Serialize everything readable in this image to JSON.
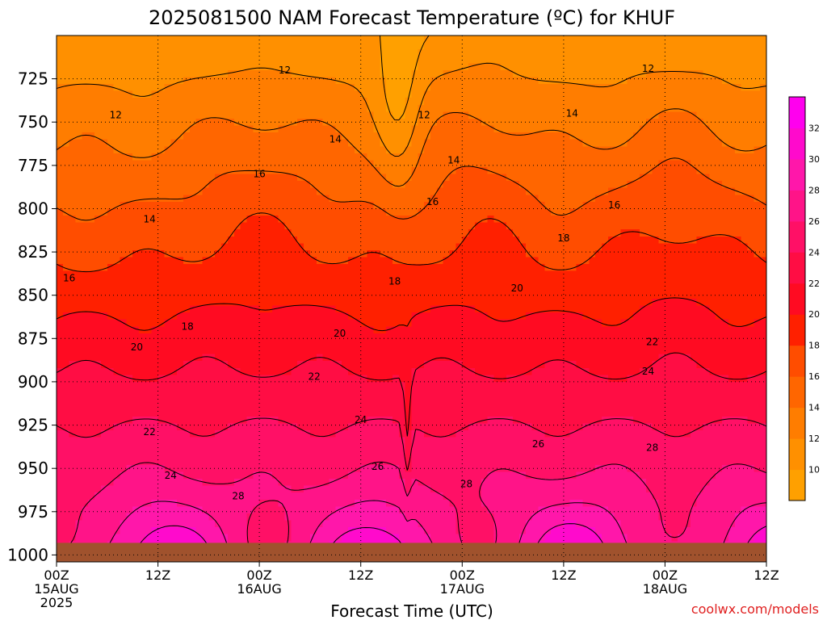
{
  "chart_data": {
    "type": "heatmap",
    "title": "2025081500 NAM Forecast Temperature (ºC) for KHUF",
    "xlabel": "Forecast Time (UTC)",
    "ylabel": "",
    "credit": "coolwx.com/models",
    "x_unit": "hours since 2025-08-15 00Z",
    "xlim": [
      0,
      84
    ],
    "ylim": [
      700,
      1004
    ],
    "y_ticks": [
      725,
      750,
      775,
      800,
      825,
      850,
      875,
      900,
      925,
      950,
      975,
      1000
    ],
    "x_ticks": [
      {
        "value": 0,
        "lines": [
          "00Z",
          "15AUG",
          "2025"
        ]
      },
      {
        "value": 12,
        "lines": [
          "12Z"
        ]
      },
      {
        "value": 24,
        "lines": [
          "00Z",
          "16AUG"
        ]
      },
      {
        "value": 36,
        "lines": [
          "12Z"
        ]
      },
      {
        "value": 48,
        "lines": [
          "00Z",
          "17AUG"
        ]
      },
      {
        "value": 60,
        "lines": [
          "12Z"
        ]
      },
      {
        "value": 72,
        "lines": [
          "00Z",
          "18AUG"
        ]
      },
      {
        "value": 84,
        "lines": [
          "12Z"
        ]
      }
    ],
    "grid": true,
    "colorbar": {
      "min": 8,
      "max": 34,
      "ticks": [
        10,
        12,
        14,
        16,
        18,
        20,
        22,
        24,
        26,
        28,
        30,
        32
      ]
    },
    "level_colors": [
      "#ffa000",
      "#ff9000",
      "#ff7d00",
      "#ff6600",
      "#ff4d00",
      "#ff2000",
      "#ff0b22",
      "#ff0d44",
      "#ff1066",
      "#ff1488",
      "#ff17aa",
      "#ff0acc",
      "#ff00ee"
    ],
    "ground_color": "#a0522d",
    "ground_top_hpa": 993,
    "contour_labels": [
      {
        "v": 12,
        "t": 27.0,
        "p": 720
      },
      {
        "v": 12,
        "t": 7.0,
        "p": 746
      },
      {
        "v": 12,
        "t": 43.5,
        "p": 746
      },
      {
        "v": 12,
        "t": 70.0,
        "p": 719
      },
      {
        "v": 14,
        "t": 33.0,
        "p": 760
      },
      {
        "v": 14,
        "t": 47.0,
        "p": 772
      },
      {
        "v": 14,
        "t": 61.0,
        "p": 745
      },
      {
        "v": 14,
        "t": 11.0,
        "p": 806
      },
      {
        "v": 16,
        "t": 24.0,
        "p": 780
      },
      {
        "v": 16,
        "t": 44.5,
        "p": 796
      },
      {
        "v": 16,
        "t": 66.0,
        "p": 798
      },
      {
        "v": 16,
        "t": 1.5,
        "p": 840
      },
      {
        "v": 18,
        "t": 15.5,
        "p": 868
      },
      {
        "v": 18,
        "t": 40.0,
        "p": 842
      },
      {
        "v": 18,
        "t": 60.0,
        "p": 817
      },
      {
        "v": 20,
        "t": 9.5,
        "p": 880
      },
      {
        "v": 20,
        "t": 33.5,
        "p": 872
      },
      {
        "v": 20,
        "t": 54.5,
        "p": 846
      },
      {
        "v": 22,
        "t": 30.5,
        "p": 897
      },
      {
        "v": 22,
        "t": 70.5,
        "p": 877
      },
      {
        "v": 22,
        "t": 11.0,
        "p": 929
      },
      {
        "v": 24,
        "t": 36.0,
        "p": 922
      },
      {
        "v": 24,
        "t": 70.0,
        "p": 894
      },
      {
        "v": 24,
        "t": 13.5,
        "p": 954
      },
      {
        "v": 26,
        "t": 38.0,
        "p": 949
      },
      {
        "v": 26,
        "t": 57.0,
        "p": 936
      },
      {
        "v": 28,
        "t": 21.5,
        "p": 966
      },
      {
        "v": 28,
        "t": 48.5,
        "p": 959
      },
      {
        "v": 28,
        "t": 70.5,
        "p": 938
      }
    ]
  }
}
